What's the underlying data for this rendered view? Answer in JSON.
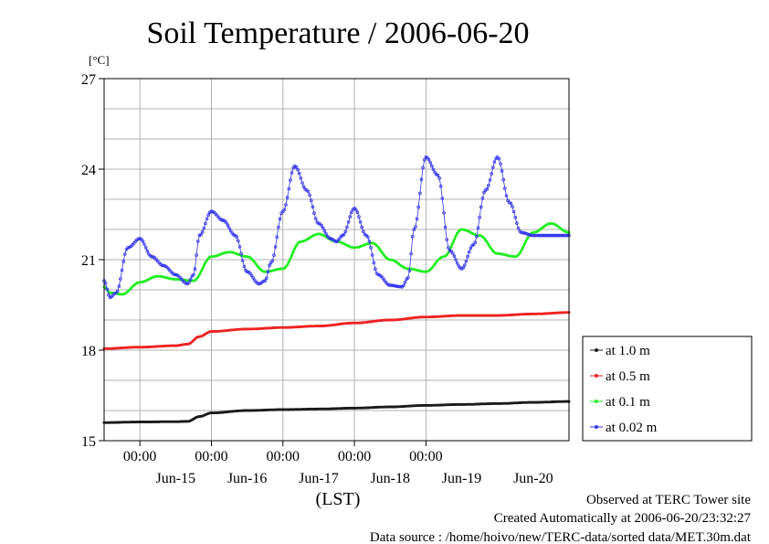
{
  "chart_data": {
    "type": "line",
    "title": "Soil Temperature / 2006-06-20",
    "ylabel": "[°C]",
    "xlabel": "(LST)",
    "ylim": [
      15,
      27
    ],
    "yticks": [
      "27",
      "24",
      "21",
      "18",
      "15"
    ],
    "ytick_values": [
      27,
      24,
      21,
      18,
      15
    ],
    "xlim": [
      "2006-06-14 12:00",
      "2006-06-20 24:00"
    ],
    "xtick_time_labels": [
      "00:00",
      "00:00",
      "00:00",
      "00:00",
      "00:00"
    ],
    "xtick_time_hours": [
      24,
      48,
      72,
      96,
      120
    ],
    "xtick_date_labels": [
      "Jun-15",
      "Jun-16",
      "Jun-17",
      "Jun-18",
      "Jun-19",
      "Jun-20"
    ],
    "xtick_date_hours": [
      36,
      60,
      84,
      108,
      132,
      156
    ],
    "grid": true,
    "legend_position": "right",
    "series": [
      {
        "name": "at 1.0 m",
        "color": "#1a1a1a",
        "x": [
          12,
          24,
          36,
          40,
          44,
          48,
          60,
          72,
          84,
          96,
          108,
          120,
          132,
          144,
          156,
          168
        ],
        "y": [
          15.6,
          15.62,
          15.63,
          15.64,
          15.8,
          15.92,
          16.0,
          16.03,
          16.05,
          16.08,
          16.12,
          16.17,
          16.2,
          16.23,
          16.27,
          16.3
        ]
      },
      {
        "name": "at 0.5 m",
        "color": "#ee2222",
        "x": [
          12,
          24,
          36,
          40,
          44,
          48,
          60,
          72,
          84,
          96,
          108,
          120,
          132,
          144,
          156,
          168
        ],
        "y": [
          18.05,
          18.1,
          18.15,
          18.2,
          18.45,
          18.62,
          18.7,
          18.75,
          18.8,
          18.9,
          19.0,
          19.1,
          19.15,
          19.15,
          19.2,
          19.25
        ]
      },
      {
        "name": "at 0.1 m",
        "color": "#22ee22",
        "x": [
          12,
          14,
          18,
          24,
          30,
          36,
          42,
          48,
          54,
          60,
          66,
          72,
          78,
          84,
          90,
          96,
          102,
          108,
          114,
          120,
          126,
          132,
          138,
          144,
          150,
          156,
          162,
          168
        ],
        "y": [
          20.1,
          19.9,
          19.85,
          20.25,
          20.45,
          20.35,
          20.3,
          21.1,
          21.25,
          21.1,
          20.6,
          20.7,
          21.6,
          21.85,
          21.6,
          21.4,
          21.55,
          21.0,
          20.7,
          20.6,
          21.1,
          22.0,
          21.8,
          21.2,
          21.1,
          21.9,
          22.2,
          21.9
        ]
      },
      {
        "name": "at 0.02 m",
        "color": "#3333ee",
        "x": [
          12,
          14,
          16,
          20,
          24,
          28,
          32,
          36,
          40,
          42,
          44,
          48,
          52,
          56,
          60,
          64,
          66,
          68,
          72,
          76,
          80,
          84,
          88,
          90,
          92,
          96,
          100,
          104,
          108,
          112,
          114,
          116,
          120,
          124,
          128,
          132,
          136,
          140,
          144,
          148,
          152,
          156,
          160,
          164,
          168
        ],
        "y": [
          20.3,
          19.75,
          19.9,
          21.4,
          21.7,
          21.1,
          20.8,
          20.5,
          20.2,
          20.5,
          21.8,
          22.6,
          22.3,
          21.8,
          20.6,
          20.2,
          20.3,
          20.9,
          22.6,
          24.1,
          23.3,
          22.2,
          21.7,
          21.6,
          21.8,
          22.7,
          21.8,
          20.5,
          20.15,
          20.1,
          20.4,
          22.0,
          24.4,
          23.8,
          21.3,
          20.7,
          21.5,
          23.3,
          24.4,
          22.9,
          21.9,
          21.8,
          21.8,
          21.8,
          21.8
        ]
      }
    ]
  },
  "footer": {
    "line1": "Observed at TERC Tower site",
    "line2": "Created Automatically at 2006-06-20/23:32:27",
    "line3": "Data source : /home/hoivo/new/TERC-data/sorted data/MET.30m.dat"
  }
}
